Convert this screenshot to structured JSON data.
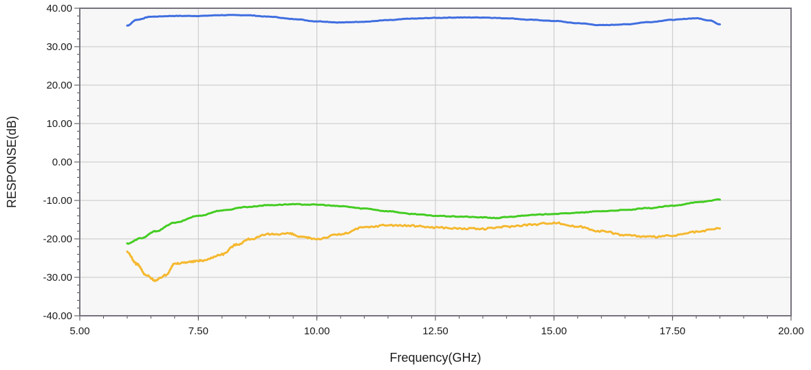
{
  "chart_data": {
    "type": "line",
    "title": "",
    "xlabel": "Frequency(GHz)",
    "ylabel": "RESPONSE(dB)",
    "xlim": [
      5.0,
      20.0
    ],
    "ylim": [
      -40.0,
      40.0
    ],
    "grid": true,
    "x_ticks": [
      "5.00",
      "7.50",
      "10.00",
      "12.50",
      "15.00",
      "17.50",
      "20.00"
    ],
    "y_ticks": [
      "40.00",
      "30.00",
      "20.00",
      "10.00",
      "0.00",
      "-10.00",
      "-20.00",
      "-30.00",
      "-40.00"
    ],
    "series": [
      {
        "color": "#3f6ee0",
        "x": [
          6.0,
          6.2,
          6.5,
          7.0,
          7.5,
          8.0,
          8.5,
          9.0,
          9.5,
          10.0,
          10.5,
          11.0,
          11.5,
          12.0,
          12.5,
          13.0,
          13.5,
          14.0,
          14.5,
          15.0,
          15.5,
          16.0,
          16.5,
          17.0,
          17.5,
          18.0,
          18.3,
          18.5
        ],
        "y": [
          35.5,
          37.0,
          37.8,
          38.0,
          38.0,
          38.2,
          38.2,
          37.8,
          37.2,
          36.6,
          36.3,
          36.5,
          36.9,
          37.3,
          37.5,
          37.6,
          37.6,
          37.4,
          37.0,
          36.7,
          36.1,
          35.6,
          35.8,
          36.4,
          37.0,
          37.4,
          36.8,
          35.8
        ]
      },
      {
        "color": "#44cc22",
        "x": [
          6.0,
          6.3,
          6.6,
          7.0,
          7.5,
          8.0,
          8.5,
          9.0,
          9.5,
          10.0,
          10.5,
          11.0,
          11.5,
          12.0,
          12.5,
          13.0,
          13.5,
          13.8,
          14.0,
          14.5,
          15.0,
          15.5,
          16.0,
          16.5,
          17.0,
          17.5,
          18.0,
          18.5
        ],
        "y": [
          -21.2,
          -19.8,
          -18.0,
          -15.8,
          -14.0,
          -12.6,
          -11.7,
          -11.2,
          -11.0,
          -11.1,
          -11.5,
          -12.1,
          -12.8,
          -13.5,
          -14.0,
          -14.2,
          -14.4,
          -14.6,
          -14.3,
          -13.8,
          -13.5,
          -13.2,
          -12.8,
          -12.5,
          -12.0,
          -11.4,
          -10.5,
          -9.8
        ]
      },
      {
        "color": "#f5b82e",
        "x": [
          6.0,
          6.2,
          6.4,
          6.6,
          6.8,
          7.0,
          7.3,
          7.6,
          8.0,
          8.3,
          8.6,
          9.0,
          9.4,
          9.7,
          10.0,
          10.5,
          11.0,
          11.5,
          12.0,
          12.5,
          13.0,
          13.5,
          14.0,
          14.5,
          15.0,
          15.5,
          16.0,
          16.5,
          17.0,
          17.5,
          18.0,
          18.5
        ],
        "y": [
          -23.5,
          -26.5,
          -29.5,
          -30.8,
          -29.5,
          -26.5,
          -26.0,
          -25.6,
          -24.0,
          -21.5,
          -20.0,
          -18.8,
          -18.6,
          -19.6,
          -20.0,
          -18.8,
          -17.0,
          -16.4,
          -16.6,
          -17.0,
          -17.3,
          -17.4,
          -16.8,
          -16.3,
          -15.8,
          -16.8,
          -18.0,
          -19.0,
          -19.5,
          -19.2,
          -18.2,
          -17.3
        ]
      }
    ]
  }
}
